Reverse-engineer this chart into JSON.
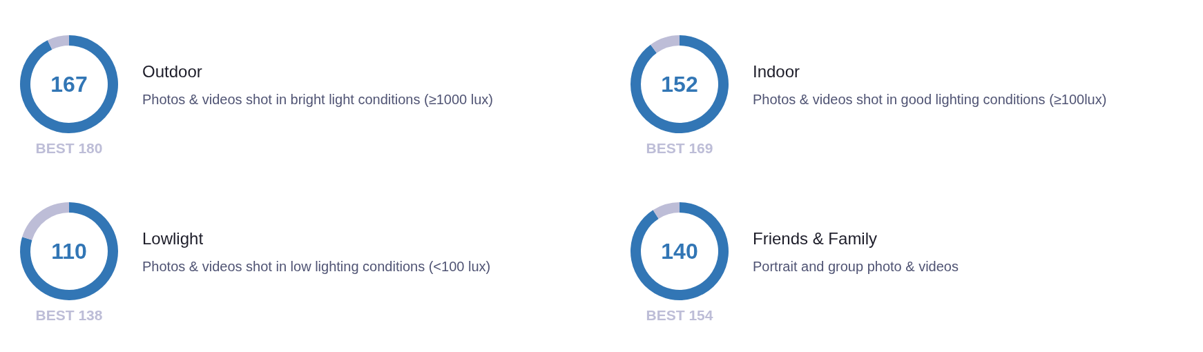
{
  "chart_data": [
    {
      "type": "donut",
      "title": "Outdoor",
      "subtitle": "Photos & videos shot in bright light conditions (≥1000 lux)",
      "categories": [
        null,
        null
      ],
      "values": [
        167,
        13
      ],
      "colors": [
        "#3276b5",
        "#bdbdd7"
      ],
      "value_labels": [
        "167",
        null
      ],
      "annotations": [
        "BEST 180"
      ]
    },
    {
      "type": "donut",
      "title": "Indoor",
      "subtitle": "Photos & videos shot in good lighting conditions (≥100lux)",
      "categories": [
        null,
        null
      ],
      "values": [
        152,
        17
      ],
      "colors": [
        "#3276b5",
        "#bdbdd7"
      ],
      "value_labels": [
        "152",
        null
      ],
      "annotations": [
        "BEST 169"
      ]
    },
    {
      "type": "donut",
      "title": "Lowlight",
      "subtitle": "Photos & videos shot in low lighting conditions (<100 lux)",
      "categories": [
        null,
        null
      ],
      "values": [
        110,
        28
      ],
      "colors": [
        "#3276b5",
        "#bdbdd7"
      ],
      "value_labels": [
        "110",
        null
      ],
      "annotations": [
        "BEST 138"
      ]
    },
    {
      "type": "donut",
      "title": "Friends & Family",
      "subtitle": "Portrait and group photo & videos",
      "categories": [
        null,
        null
      ],
      "values": [
        140,
        14
      ],
      "colors": [
        "#3276b5",
        "#bdbdd7"
      ],
      "value_labels": [
        "140",
        null
      ],
      "annotations": [
        "BEST 154"
      ]
    }
  ]
}
